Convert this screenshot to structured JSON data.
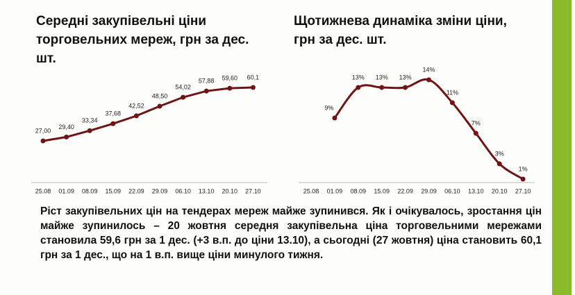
{
  "chart_data": [
    {
      "type": "line",
      "title": "Середні закупівельні ціни торговельних мереж, грн за дес. шт.",
      "categories": [
        "25.08",
        "01.09",
        "08.09",
        "15.09",
        "22.09",
        "29.09",
        "06.10",
        "13.10",
        "20.10",
        "27.10"
      ],
      "values": [
        27.0,
        29.4,
        33.34,
        37.68,
        42.52,
        48.5,
        54.02,
        57.88,
        59.6,
        60.1
      ],
      "value_labels": [
        "27,00",
        "29,40",
        "33,34",
        "37,68",
        "42,52",
        "48,50",
        "54,02",
        "57,88",
        "59,60",
        "60,1"
      ],
      "color": "#6e1414",
      "smooth": false
    },
    {
      "type": "line",
      "title": "Щотижнева динаміка зміни ціни, грн за дес. шт.",
      "categories": [
        "25.08",
        "01.09",
        "08.09",
        "15.09",
        "22.09",
        "29.09",
        "06.10",
        "13.10",
        "20.10",
        "27.10"
      ],
      "values": [
        null,
        9,
        13,
        13,
        13,
        14,
        11,
        7,
        3,
        1
      ],
      "value_labels": [
        null,
        "9%",
        "13%",
        "13%",
        "13%",
        "14%",
        "11%",
        "7%",
        "3%",
        "1%"
      ],
      "color": "#6e1414",
      "smooth": true
    }
  ],
  "text": "Ріст закупівельних цін на тендерах мереж майже зупинився. Як і очікувалось, зростання цін майже зупинилось – 20 жовтня середня закупівельна ціна торговельними мережами становила 59,6 грн за 1 дес. (+3 в.п. до ціни 13.10), а сьогодні (27 жовтня) ціна становить 60,1 грн за 1 дес., що на 1 в.п. вище ціни минулого тижня."
}
